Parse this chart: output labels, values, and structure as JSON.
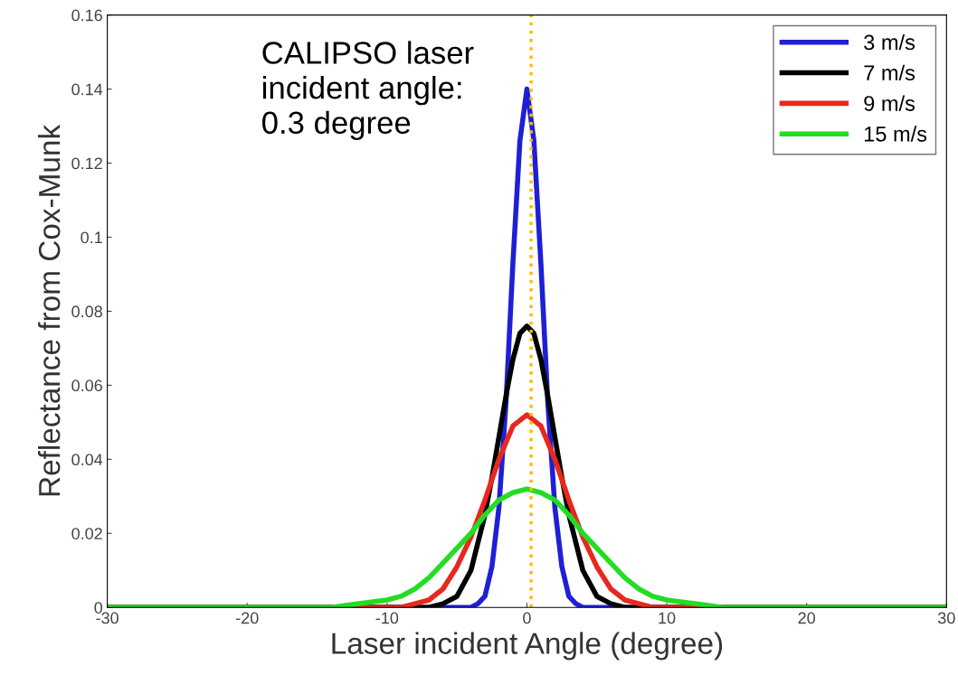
{
  "chart_data": {
    "type": "line",
    "xlabel": "Laser incident Angle (degree)",
    "ylabel": "Reflectance from Cox-Munk",
    "xlim": [
      -30,
      30
    ],
    "xticks": [
      -30,
      -20,
      -10,
      0,
      10,
      20,
      30
    ],
    "ylim": [
      0,
      0.16
    ],
    "yticks": [
      0,
      0.02,
      0.04,
      0.06,
      0.08,
      0.1,
      0.12,
      0.14,
      0.16
    ],
    "grid": false,
    "legend": "top right",
    "series": [
      {
        "name": "3 m/s",
        "color": "#1f1fd6",
        "x": [
          -30,
          -4,
          -3.5,
          -3,
          -2.5,
          -2,
          -1.5,
          -1,
          -0.5,
          0,
          0.5,
          1,
          1.5,
          2,
          2.5,
          3,
          3.5,
          4,
          30
        ],
        "values": [
          0,
          0,
          0.001,
          0.003,
          0.011,
          0.027,
          0.055,
          0.093,
          0.126,
          0.14,
          0.126,
          0.093,
          0.055,
          0.027,
          0.011,
          0.003,
          0.001,
          0,
          0
        ]
      },
      {
        "name": "7 m/s",
        "color": "#000000",
        "x": [
          -30,
          -7,
          -6,
          -5,
          -4,
          -3,
          -2.5,
          -2,
          -1.5,
          -1,
          -0.5,
          0,
          0.5,
          1,
          1.5,
          2,
          2.5,
          3,
          4,
          5,
          6,
          7,
          30
        ],
        "values": [
          0,
          0,
          0.001,
          0.003,
          0.01,
          0.025,
          0.035,
          0.046,
          0.057,
          0.067,
          0.074,
          0.076,
          0.074,
          0.067,
          0.057,
          0.046,
          0.035,
          0.025,
          0.01,
          0.003,
          0.001,
          0,
          0
        ]
      },
      {
        "name": "9 m/s",
        "color": "#e8281e",
        "x": [
          -30,
          -9,
          -8,
          -7,
          -6,
          -5,
          -4,
          -3,
          -2,
          -1,
          0,
          1,
          2,
          3,
          4,
          5,
          6,
          7,
          8,
          9,
          30
        ],
        "values": [
          0,
          0,
          0.001,
          0.002,
          0.005,
          0.011,
          0.019,
          0.029,
          0.04,
          0.049,
          0.052,
          0.049,
          0.04,
          0.029,
          0.019,
          0.011,
          0.005,
          0.002,
          0.001,
          0,
          0
        ]
      },
      {
        "name": "15 m/s",
        "color": "#22dd22",
        "x": [
          -30,
          -14,
          -12,
          -10,
          -9,
          -8,
          -7,
          -6,
          -5,
          -4,
          -3,
          -2,
          -1,
          0,
          1,
          2,
          3,
          4,
          5,
          6,
          7,
          8,
          9,
          10,
          12,
          14,
          30
        ],
        "values": [
          0,
          0,
          0.001,
          0.002,
          0.003,
          0.005,
          0.008,
          0.012,
          0.016,
          0.02,
          0.025,
          0.029,
          0.031,
          0.032,
          0.031,
          0.029,
          0.025,
          0.02,
          0.016,
          0.012,
          0.008,
          0.005,
          0.003,
          0.002,
          0.001,
          0,
          0
        ]
      }
    ],
    "ref_lines": [
      {
        "axis": "x",
        "value": 0.3,
        "label": "CALIPSO laser\nincident angle:\n0.3 degree",
        "color": "#ffbb00",
        "line_style": "dotted"
      }
    ]
  }
}
